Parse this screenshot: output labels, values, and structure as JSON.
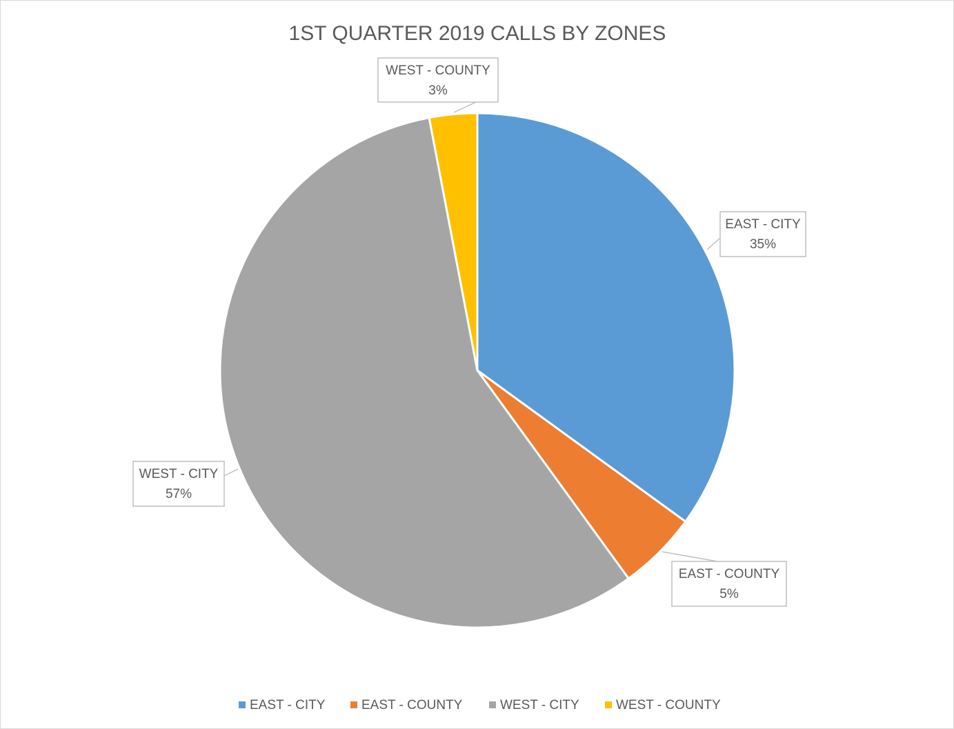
{
  "chart_data": {
    "type": "pie",
    "title": "1ST QUARTER 2019 CALLS BY ZONES",
    "categories": [
      "EAST - CITY",
      "EAST - COUNTY",
      "WEST - CITY",
      "WEST - COUNTY"
    ],
    "values": [
      35,
      5,
      57,
      3
    ],
    "value_labels": [
      "35%",
      "5%",
      "57%",
      "3%"
    ],
    "colors": [
      "#5b9bd5",
      "#ed7d31",
      "#a5a5a5",
      "#ffc000"
    ],
    "legend": "bottom"
  }
}
